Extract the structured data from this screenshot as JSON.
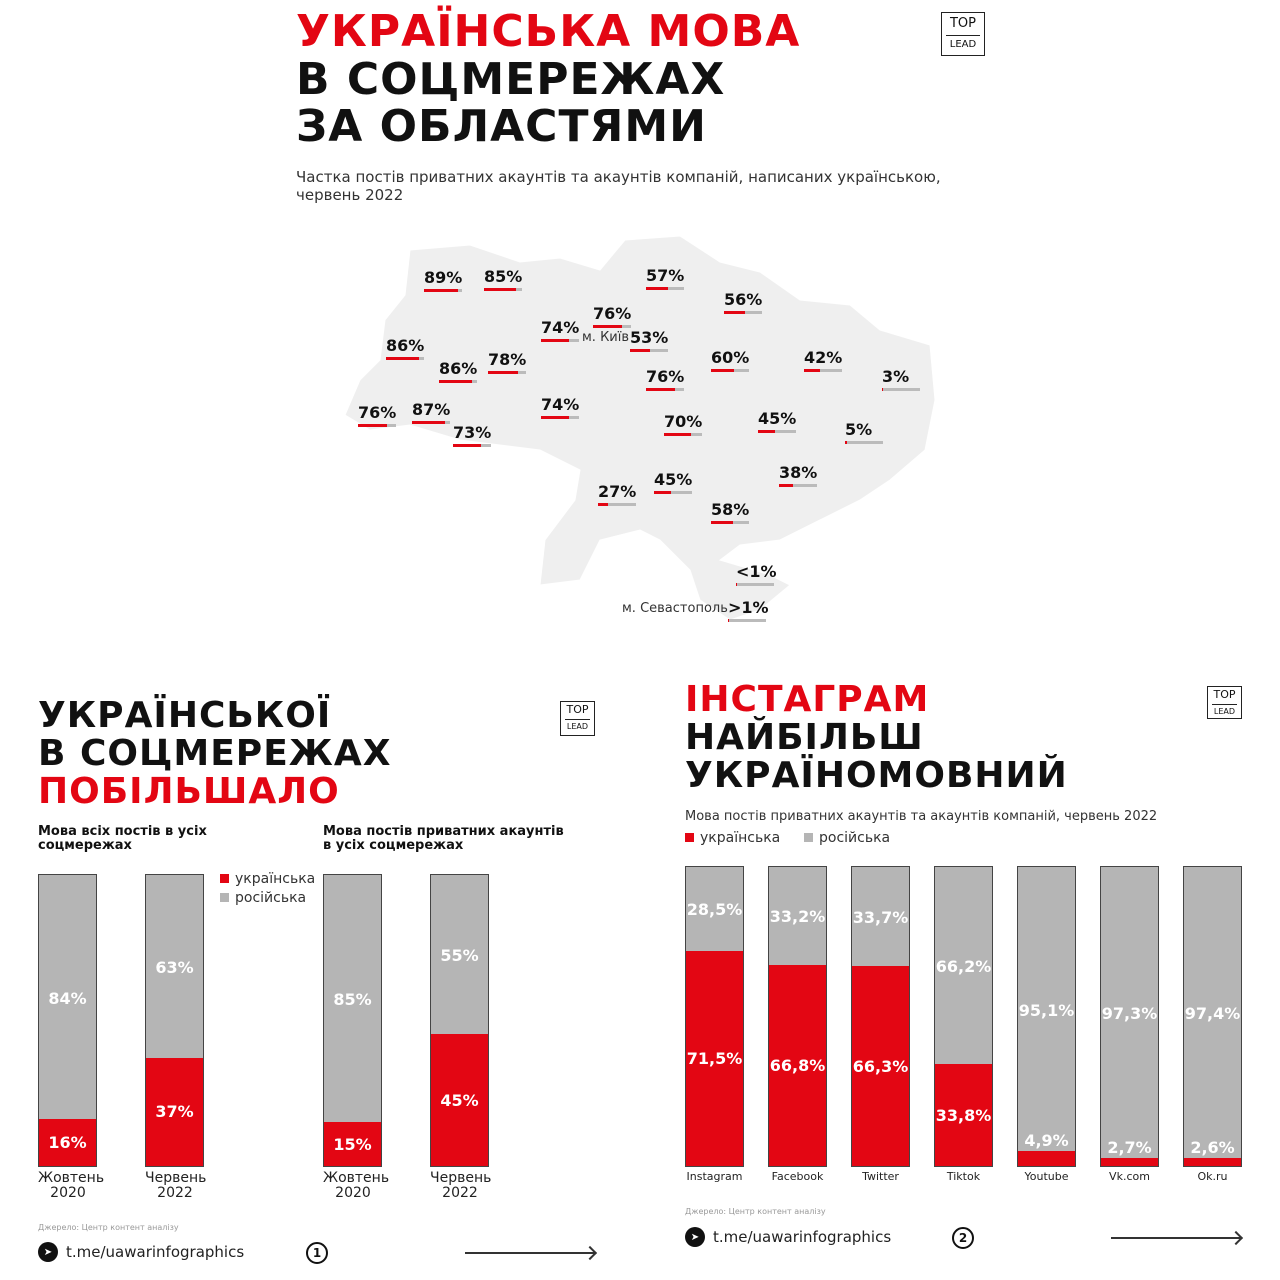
{
  "top": {
    "title_line1": "УКРАЇНСЬКА МОВА",
    "title_line2": "В СОЦМЕРЕЖАХ",
    "title_line3": "ЗА ОБЛАСТЯМИ",
    "subtitle_line1": "Частка постів приватних акаунтів та акаунтів компаній, написаних українською,",
    "subtitle_line2": "червень 2022",
    "logo_top": "TOP",
    "logo_bottom": "LEAD"
  },
  "colors": {
    "ukrainian": "#e30613",
    "russian": "#b5b5b5",
    "map": "#efefef"
  },
  "map": {
    "city_kyiv": "м. Київ",
    "city_sevastopol": "м. Севастополь",
    "labels": [
      {
        "text": "89%",
        "value": 89
      },
      {
        "text": "85%",
        "value": 85
      },
      {
        "text": "57%",
        "value": 57
      },
      {
        "text": "56%",
        "value": 56
      },
      {
        "text": "76%",
        "value": 76
      },
      {
        "text": "74%",
        "value": 74
      },
      {
        "text": "53%",
        "value": 53
      },
      {
        "text": "86%",
        "value": 86
      },
      {
        "text": "86%",
        "value": 86
      },
      {
        "text": "78%",
        "value": 78
      },
      {
        "text": "60%",
        "value": 60
      },
      {
        "text": "42%",
        "value": 42
      },
      {
        "text": "3%",
        "value": 3
      },
      {
        "text": "76%",
        "value": 76
      },
      {
        "text": "76%",
        "value": 76
      },
      {
        "text": "87%",
        "value": 87
      },
      {
        "text": "74%",
        "value": 74
      },
      {
        "text": "70%",
        "value": 70
      },
      {
        "text": "45%",
        "value": 45
      },
      {
        "text": "5%",
        "value": 5
      },
      {
        "text": "73%",
        "value": 73
      },
      {
        "text": "27%",
        "value": 27
      },
      {
        "text": "45%",
        "value": 45
      },
      {
        "text": "38%",
        "value": 38
      },
      {
        "text": "58%",
        "value": 58
      },
      {
        "text": "<1%",
        "value": 0.5
      },
      {
        "text": ">1%",
        "value": 1
      }
    ]
  },
  "left": {
    "title_line1": "УКРАЇНСЬКОЇ",
    "title_line2": "В СОЦМЕРЕЖАХ",
    "title_line3": "ПОБІЛЬШАЛО",
    "logo_top": "TOP",
    "logo_bottom": "LEAD",
    "source": "Джерело: Центр контент аналізу",
    "telegram": "t.me/uawarinfographics",
    "page": "1",
    "legend_ua": "українська",
    "legend_ru": "російська"
  },
  "right": {
    "title_line1": "ІНСТАГРАМ",
    "title_line2": "НАЙБІЛЬШ",
    "title_line3": "УКРАЇНОМОВНИЙ",
    "subtitle": "Мова постів приватних акаунтів та акаунтів компаній, червень 2022",
    "legend_ua": "українська",
    "legend_ru": "російська",
    "logo_top": "TOP",
    "logo_bottom": "LEAD",
    "source": "Джерело: Центр контент аналізу",
    "telegram": "t.me/uawarinfographics",
    "page": "2"
  },
  "chart_data": [
    {
      "type": "bar",
      "stacked": true,
      "title": "Мова всіх постів в усіх соцмережах",
      "categories": [
        "Жовтень 2020",
        "Червень 2022"
      ],
      "series": [
        {
          "name": "українська",
          "values": [
            16,
            37
          ],
          "labels": [
            "16%",
            "37%"
          ]
        },
        {
          "name": "російська",
          "values": [
            84,
            63
          ],
          "labels": [
            "84%",
            "63%"
          ]
        }
      ],
      "ylim": [
        0,
        100
      ]
    },
    {
      "type": "bar",
      "stacked": true,
      "title": "Мова постів приватних акаунтів в усіх соцмережах",
      "categories": [
        "Жовтень 2020",
        "Червень 2022"
      ],
      "series": [
        {
          "name": "українська",
          "values": [
            15,
            45
          ],
          "labels": [
            "15%",
            "45%"
          ]
        },
        {
          "name": "російська",
          "values": [
            85,
            55
          ],
          "labels": [
            "85%",
            "55%"
          ]
        }
      ],
      "ylim": [
        0,
        100
      ]
    },
    {
      "type": "bar",
      "stacked": true,
      "title": "Мова постів приватних акаунтів та акаунтів компаній, червень 2022",
      "categories": [
        "Instagram",
        "Facebook",
        "Twitter",
        "Tiktok",
        "Youtube",
        "Vk.com",
        "Ok.ru"
      ],
      "series": [
        {
          "name": "українська",
          "values": [
            71.5,
            66.8,
            66.3,
            33.8,
            4.9,
            2.7,
            2.6
          ],
          "labels": [
            "71,5%",
            "66,8%",
            "66,3%",
            "33,8%",
            "4,9%",
            "2,7%",
            "2,6%"
          ]
        },
        {
          "name": "російська",
          "values": [
            28.5,
            33.2,
            33.7,
            66.2,
            95.1,
            97.3,
            97.4
          ],
          "labels": [
            "28,5%",
            "33,2%",
            "33,7%",
            "66,2%",
            "95,1%",
            "97,3%",
            "97,4%"
          ]
        }
      ],
      "ylim": [
        0,
        100
      ]
    }
  ]
}
